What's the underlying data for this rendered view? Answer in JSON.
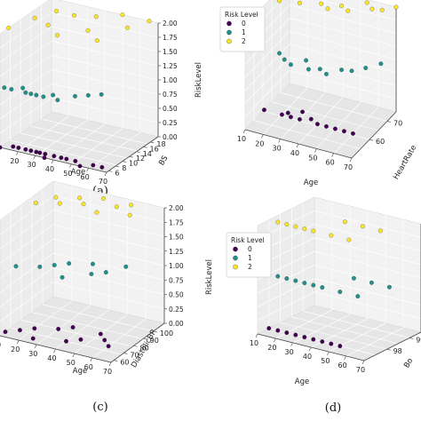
{
  "chart_data": [
    {
      "type": "scatter",
      "panel": "(a)",
      "xlabel": "Age",
      "ylabel": "BS",
      "zlabel": "RiskLevel",
      "x_ticks": [
        "0",
        "20",
        "30",
        "40",
        "50",
        "60",
        "70"
      ],
      "y_ticks": [
        "6",
        "8",
        "10",
        "12",
        "14",
        "16",
        "18"
      ],
      "z_ticks": [
        "0.00",
        "0.25",
        "0.50",
        "0.75",
        "1.00",
        "1.25",
        "1.50",
        "1.75",
        "2.00"
      ],
      "zlim": [
        0,
        2
      ],
      "legend": null,
      "series": [
        {
          "risk": 0,
          "color": "#440154",
          "x": [
            10,
            15,
            18,
            22,
            25,
            28,
            30,
            33,
            35,
            38,
            42,
            45,
            50,
            55,
            60,
            65
          ],
          "y": [
            6,
            7,
            7,
            7,
            7,
            7,
            7,
            7,
            6,
            7,
            7,
            7,
            7,
            6,
            7,
            7
          ],
          "z": [
            0,
            0,
            0,
            0,
            0,
            0,
            0,
            0,
            0,
            0,
            0,
            0,
            0,
            0,
            0,
            0
          ]
        },
        {
          "risk": 1,
          "color": "#21918c",
          "x": [
            10,
            14,
            18,
            22,
            25,
            28,
            32,
            35,
            40,
            45,
            50,
            55
          ],
          "y": [
            7,
            7,
            8,
            7,
            7,
            7,
            7,
            8,
            7,
            9,
            10,
            11
          ],
          "z": [
            1,
            1,
            1,
            1,
            1,
            1,
            1,
            1,
            1,
            1,
            1,
            1
          ]
        },
        {
          "risk": 2,
          "color": "#fde725",
          "x": [
            10,
            15,
            20,
            25,
            30,
            35,
            40,
            45,
            50,
            55,
            60,
            65
          ],
          "y": [
            8,
            12,
            15,
            11,
            15,
            9,
            16,
            12,
            18,
            10,
            15,
            18
          ],
          "z": [
            2,
            2,
            2,
            2,
            2,
            2,
            2,
            2,
            2,
            2,
            2,
            2
          ]
        }
      ]
    },
    {
      "type": "scatter",
      "panel": "(b)",
      "xlabel": "Age",
      "ylabel": "HeartRate",
      "zlabel": "",
      "x_ticks": [
        "10",
        "20",
        "30",
        "40",
        "50",
        "60",
        "70"
      ],
      "y_ticks": [
        "60",
        "70"
      ],
      "z_ticks": [],
      "zlim": [
        0,
        2
      ],
      "legend": {
        "title": "Risk Level",
        "labels": [
          "0",
          "1",
          "2"
        ]
      },
      "series": [
        {
          "risk": 0,
          "color": "#440154",
          "x": [
            10,
            20,
            22,
            25,
            28,
            30,
            35,
            40,
            45,
            50,
            55,
            60
          ],
          "y": [
            70,
            70,
            72,
            70,
            75,
            70,
            72,
            70,
            70,
            70,
            70,
            70
          ],
          "z": [
            0,
            0,
            0,
            0,
            0,
            0,
            0,
            0,
            0,
            0,
            0,
            0
          ]
        },
        {
          "risk": 1,
          "color": "#21918c",
          "x": [
            15,
            20,
            25,
            30,
            35,
            40,
            45,
            50,
            55,
            60,
            65
          ],
          "y": [
            75,
            72,
            70,
            75,
            70,
            72,
            70,
            75,
            76,
            80,
            85
          ],
          "z": [
            1,
            1,
            1,
            1,
            1,
            1,
            1,
            1,
            1,
            1,
            1
          ]
        },
        {
          "risk": 2,
          "color": "#fde725",
          "x": [
            15,
            20,
            25,
            30,
            35,
            40,
            45,
            50,
            55,
            60,
            65,
            70
          ],
          "y": [
            75,
            80,
            77,
            85,
            80,
            78,
            82,
            80,
            88,
            85,
            86,
            90
          ],
          "z": [
            2,
            2,
            2,
            2,
            2,
            2,
            2,
            2,
            2,
            2,
            2,
            2
          ]
        }
      ]
    },
    {
      "type": "scatter",
      "panel": "(c)",
      "xlabel": "Age",
      "ylabel": "DiastolicBP",
      "zlabel": "RiskLevel",
      "x_ticks": [
        "10",
        "20",
        "30",
        "40",
        "50",
        "60",
        "70"
      ],
      "y_ticks": [
        "60",
        "70",
        "80",
        "90",
        "100"
      ],
      "z_ticks": [
        "0.00",
        "0.25",
        "0.50",
        "0.75",
        "1.00",
        "1.25",
        "1.50",
        "1.75",
        "2.00"
      ],
      "zlim": [
        0,
        2
      ],
      "legend": null,
      "series": [
        {
          "risk": 0,
          "color": "#440154",
          "x": [
            10,
            15,
            20,
            25,
            30,
            35,
            40,
            45,
            50,
            55,
            60
          ],
          "y": [
            60,
            65,
            70,
            60,
            75,
            80,
            65,
            70,
            80,
            75,
            70
          ],
          "z": [
            0,
            0,
            0,
            0,
            0,
            0,
            0,
            0,
            0,
            0,
            0
          ]
        },
        {
          "risk": 1,
          "color": "#21918c",
          "x": [
            10,
            20,
            25,
            30,
            35,
            40,
            45,
            50,
            55
          ],
          "y": [
            70,
            75,
            80,
            85,
            70,
            90,
            80,
            85,
            95
          ],
          "z": [
            1,
            1,
            1,
            1,
            1,
            1,
            1,
            1,
            1
          ]
        },
        {
          "risk": 2,
          "color": "#fde725",
          "x": [
            15,
            20,
            25,
            30,
            35,
            40,
            45,
            50,
            55,
            60
          ],
          "y": [
            80,
            90,
            85,
            95,
            90,
            100,
            85,
            95,
            100,
            90
          ],
          "z": [
            2,
            2,
            2,
            2,
            2,
            2,
            2,
            2,
            2,
            2
          ]
        }
      ]
    },
    {
      "type": "scatter",
      "panel": "(d)",
      "xlabel": "Age",
      "ylabel": "Bo",
      "zlabel": "",
      "x_ticks": [
        "10",
        "20",
        "30",
        "40",
        "50",
        "60",
        "70"
      ],
      "y_ticks": [
        "98",
        "99"
      ],
      "z_ticks": [],
      "zlim": [
        0,
        2
      ],
      "legend": {
        "title": "Risk Level",
        "labels": [
          "0",
          "1",
          "2"
        ]
      },
      "series": [
        {
          "risk": 0,
          "color": "#440154",
          "x": [
            10,
            15,
            20,
            25,
            30,
            35,
            40,
            45,
            50
          ],
          "y": [
            98,
            98,
            98,
            98,
            98,
            98,
            98,
            98,
            98
          ],
          "z": [
            0,
            0,
            0,
            0,
            0,
            0,
            0,
            0,
            0
          ]
        },
        {
          "risk": 1,
          "color": "#21918c",
          "x": [
            10,
            15,
            20,
            25,
            30,
            35,
            40,
            45,
            50,
            55,
            60,
            65
          ],
          "y": [
            98,
            98,
            98,
            98,
            98,
            98,
            98,
            99,
            98,
            99,
            98,
            99
          ],
          "z": [
            1,
            1,
            1,
            1,
            1,
            1,
            1,
            1,
            1,
            1,
            1,
            1
          ]
        },
        {
          "risk": 2,
          "color": "#fde725",
          "x": [
            15,
            20,
            25,
            30,
            35,
            40,
            45,
            50,
            55,
            60
          ],
          "y": [
            98,
            98,
            98,
            98,
            98,
            99,
            98,
            99,
            98,
            99
          ],
          "z": [
            2,
            2,
            2,
            2,
            2,
            2,
            2,
            2,
            2,
            2
          ]
        }
      ]
    }
  ],
  "legend_colors": {
    "0": "#440154",
    "1": "#21918c",
    "2": "#fde725"
  }
}
